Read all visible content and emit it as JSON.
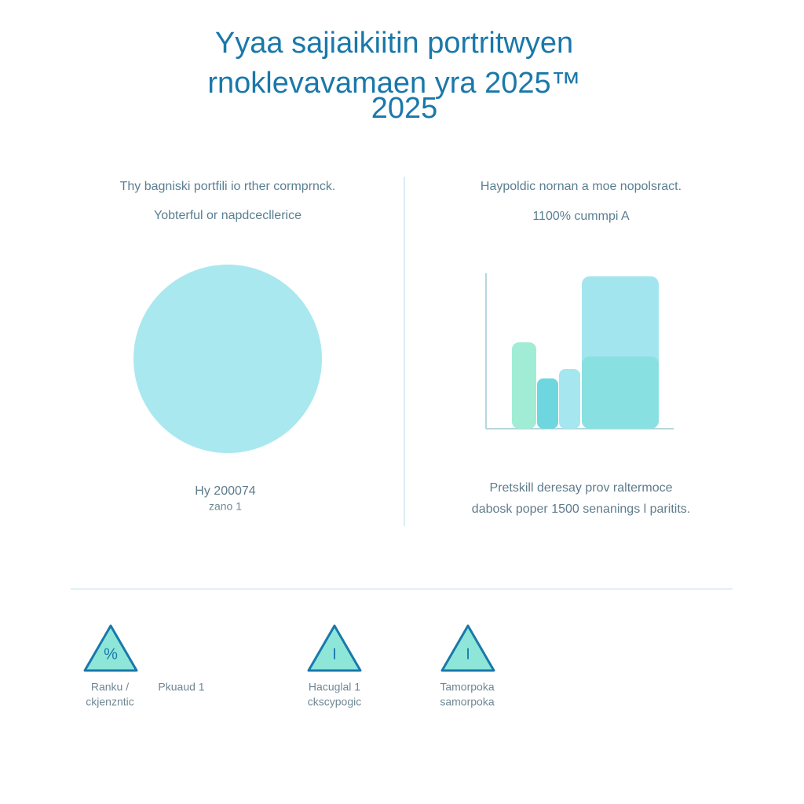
{
  "header": {
    "title_lines": [
      "Yyaa sajiaikiitin portritwyen",
      "rnoklevavamaen yra 2025™",
      "2025"
    ]
  },
  "panels": [
    {
      "heading": "Thy bagniski portfili io rther cormprnck.",
      "subheading": "Yobterful or napdcecllerice",
      "caption_lines": [
        "Hy 200074",
        "zano 1"
      ]
    },
    {
      "heading": "Haypoldic nornan a moe nopolsract.",
      "subheading": "1100% cummpi A",
      "caption_lines": [
        "Pretskill deresay prov raltermoce",
        "dabosk poper 1500 senanings l paritits."
      ]
    }
  ],
  "features": [
    {
      "icon": "%",
      "label_lines": [
        "Ranku /",
        "ckjenzntic"
      ]
    },
    {
      "icon": "I",
      "label_lines": [
        "Hacuglal 1",
        "ckscypogic"
      ]
    },
    {
      "icon": "I",
      "label_lines": [
        "Tamorpoka",
        "samorpoka"
      ]
    }
  ],
  "note": "Pkuaud 1"
}
